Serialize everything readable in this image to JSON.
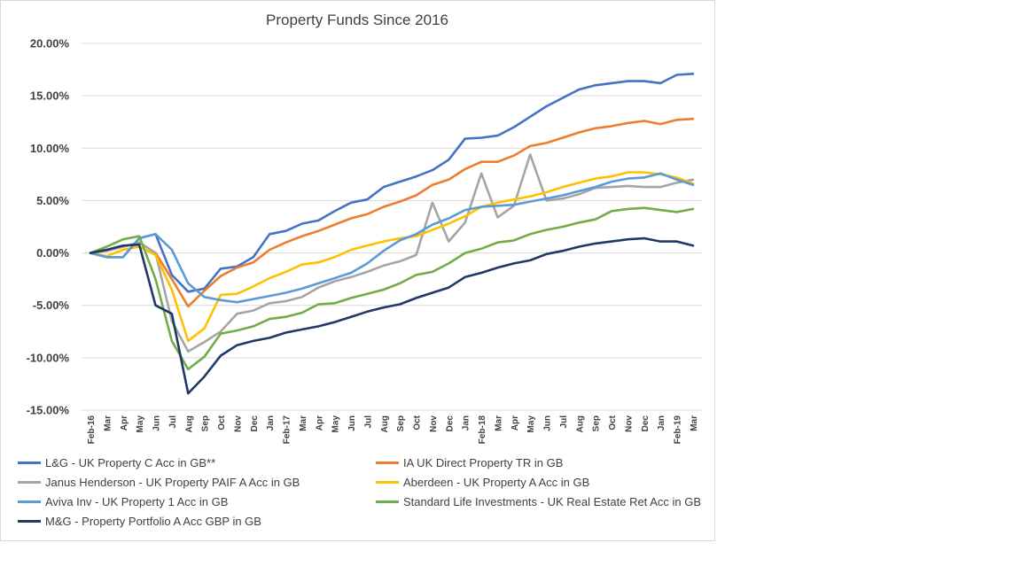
{
  "chart_data": {
    "type": "line",
    "title": "Property Funds Since 2016",
    "xlabel": "",
    "ylabel": "",
    "ylim": [
      -15,
      20
    ],
    "y_ticks": [
      20,
      15,
      10,
      5,
      0,
      -5,
      -10,
      -15
    ],
    "y_tick_labels": [
      "20.00%",
      "15.00%",
      "10.00%",
      "5.00%",
      "0.00%",
      "-5.00%",
      "-10.00%",
      "-15.00%"
    ],
    "grid": true,
    "legend_position": "bottom",
    "categories": [
      "Feb-16",
      "Mar",
      "Apr",
      "May",
      "Jun",
      "Jul",
      "Aug",
      "Sep",
      "Oct",
      "Nov",
      "Dec",
      "Jan",
      "Feb-17",
      "Mar",
      "Apr",
      "May",
      "Jun",
      "Jul",
      "Aug",
      "Sep",
      "Oct",
      "Nov",
      "Dec",
      "Jan",
      "Feb-18",
      "Mar",
      "Apr",
      "May",
      "Jun",
      "Jul",
      "Aug",
      "Sep",
      "Oct",
      "Nov",
      "Dec",
      "Jan",
      "Feb-19",
      "Mar"
    ],
    "series": [
      {
        "name": "L&G - UK Property C Acc in GB**",
        "color": "#4472C4",
        "values": [
          0.0,
          -0.4,
          -0.4,
          1.4,
          1.8,
          -2.1,
          -3.7,
          -3.4,
          -1.5,
          -1.3,
          -0.4,
          1.8,
          2.1,
          2.8,
          3.1,
          4.0,
          4.8,
          5.1,
          6.3,
          6.8,
          7.3,
          7.9,
          8.9,
          10.9,
          11.0,
          11.2,
          12.0,
          13.0,
          14.0,
          14.8,
          15.6,
          16.0,
          16.2,
          16.4,
          16.4,
          16.2,
          17.0,
          17.1
        ]
      },
      {
        "name": "IA UK Direct Property TR in GB",
        "color": "#ED7D31",
        "values": [
          0.0,
          0.2,
          0.6,
          1.0,
          0.0,
          -2.5,
          -5.1,
          -3.6,
          -2.2,
          -1.4,
          -0.9,
          0.3,
          1.0,
          1.6,
          2.1,
          2.7,
          3.3,
          3.7,
          4.4,
          4.9,
          5.5,
          6.5,
          7.0,
          8.0,
          8.7,
          8.7,
          9.3,
          10.2,
          10.5,
          11.0,
          11.5,
          11.9,
          12.1,
          12.4,
          12.6,
          12.3,
          12.7,
          12.8
        ]
      },
      {
        "name": "Janus Henderson - UK Property PAIF A Acc in GB",
        "color": "#A5A5A5",
        "values": [
          0.0,
          0.2,
          0.6,
          1.0,
          0.0,
          -6.5,
          -9.4,
          -8.5,
          -7.5,
          -5.8,
          -5.5,
          -4.8,
          -4.6,
          -4.2,
          -3.3,
          -2.7,
          -2.3,
          -1.8,
          -1.2,
          -0.8,
          -0.2,
          4.8,
          1.1,
          2.9,
          7.6,
          3.4,
          4.5,
          9.4,
          5.0,
          5.2,
          5.6,
          6.2,
          6.3,
          6.4,
          6.3,
          6.3,
          6.7,
          7.0
        ]
      },
      {
        "name": "Aberdeen - UK Property A Acc in GB",
        "color": "#FFC000",
        "values": [
          0.0,
          -0.3,
          0.3,
          0.6,
          -0.2,
          -3.5,
          -8.4,
          -7.2,
          -4.0,
          -3.9,
          -3.2,
          -2.4,
          -1.8,
          -1.1,
          -0.9,
          -0.4,
          0.3,
          0.7,
          1.1,
          1.4,
          1.6,
          2.2,
          2.8,
          3.5,
          4.4,
          4.8,
          5.1,
          5.4,
          5.8,
          6.3,
          6.7,
          7.1,
          7.3,
          7.7,
          7.7,
          7.5,
          7.2,
          6.6
        ]
      },
      {
        "name": "Aviva Inv - UK Property 1 Acc in GB",
        "color": "#5B9BD5",
        "values": [
          0.0,
          -0.4,
          -0.4,
          1.4,
          1.8,
          0.3,
          -2.9,
          -4.2,
          -4.5,
          -4.7,
          -4.4,
          -4.1,
          -3.8,
          -3.4,
          -2.9,
          -2.4,
          -1.9,
          -1.0,
          0.2,
          1.2,
          1.8,
          2.7,
          3.3,
          4.1,
          4.4,
          4.5,
          4.6,
          4.9,
          5.2,
          5.5,
          5.9,
          6.3,
          6.8,
          7.1,
          7.2,
          7.6,
          7.0,
          6.5
        ]
      },
      {
        "name": "Standard Life Investments - UK Real Estate Ret Acc in GB",
        "color": "#70AD47",
        "values": [
          0.0,
          0.6,
          1.3,
          1.6,
          -2.5,
          -8.4,
          -11.1,
          -9.9,
          -7.7,
          -7.4,
          -7.0,
          -6.3,
          -6.1,
          -5.7,
          -4.9,
          -4.8,
          -4.3,
          -3.9,
          -3.5,
          -2.9,
          -2.1,
          -1.8,
          -1.0,
          0.0,
          0.4,
          1.0,
          1.2,
          1.8,
          2.2,
          2.5,
          2.9,
          3.2,
          4.0,
          4.2,
          4.3,
          4.1,
          3.9,
          4.2
        ]
      },
      {
        "name": "M&G - Property Portfolio A Acc GBP in GB",
        "color": "#203864",
        "values": [
          0.0,
          0.3,
          0.7,
          0.8,
          -5.0,
          -5.8,
          -13.4,
          -11.8,
          -9.8,
          -8.8,
          -8.4,
          -8.1,
          -7.6,
          -7.3,
          -7.0,
          -6.6,
          -6.1,
          -5.6,
          -5.2,
          -4.9,
          -4.3,
          -3.8,
          -3.3,
          -2.3,
          -1.9,
          -1.4,
          -1.0,
          -0.7,
          -0.1,
          0.2,
          0.6,
          0.9,
          1.1,
          1.3,
          1.4,
          1.1,
          1.1,
          0.7
        ]
      }
    ]
  }
}
